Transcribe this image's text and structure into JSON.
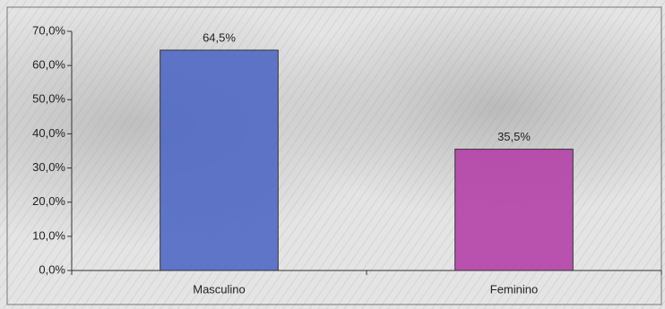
{
  "chart_data": {
    "type": "bar",
    "categories": [
      "Masculino",
      "Feminino"
    ],
    "values": [
      64.5,
      35.5
    ],
    "value_labels": [
      "64,5%",
      "35,5%"
    ],
    "colors": [
      "#4c66c4",
      "#b23ea6"
    ],
    "ylim": [
      0,
      70
    ],
    "yticks": [
      {
        "value": 0,
        "label": "0,0%"
      },
      {
        "value": 10,
        "label": "10,0%"
      },
      {
        "value": 20,
        "label": "20,0%"
      },
      {
        "value": 30,
        "label": "30,0%"
      },
      {
        "value": 40,
        "label": "40,0%"
      },
      {
        "value": 50,
        "label": "50,0%"
      },
      {
        "value": 60,
        "label": "60,0%"
      },
      {
        "value": 70,
        "label": "70,0%"
      }
    ],
    "grid": false
  }
}
